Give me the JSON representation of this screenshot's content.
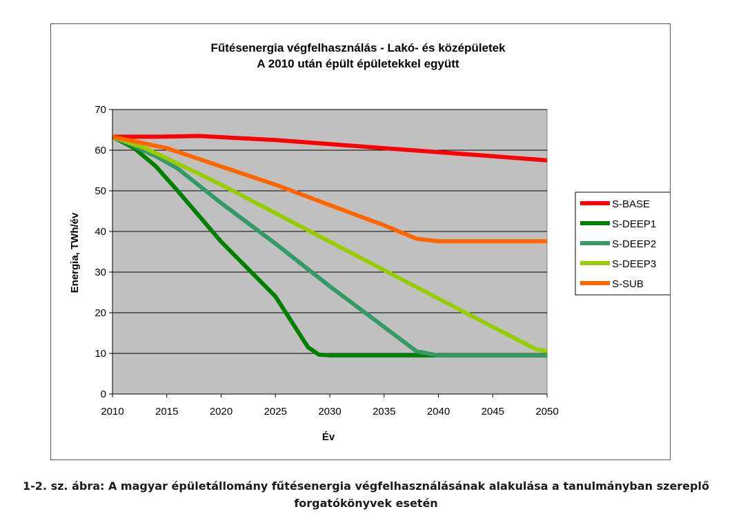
{
  "chart_data": {
    "type": "line",
    "title": "Fűtésenergia végfelhasználás - Lakó- és középületek",
    "subtitle": "A 2010 után épült épületekkel együtt",
    "xlabel": "Év",
    "ylabel": "Energia, TWh/év",
    "xlim": [
      2010,
      2050
    ],
    "ylim": [
      0,
      70
    ],
    "x_ticks": [
      2010,
      2015,
      2020,
      2025,
      2030,
      2035,
      2040,
      2045,
      2050
    ],
    "y_ticks": [
      0,
      10,
      20,
      30,
      40,
      50,
      60,
      70
    ],
    "grid": true,
    "legend_position": "right",
    "plot_background": "#c0c0c0",
    "series": [
      {
        "name": "S-BASE",
        "color": "#ff0000",
        "points": [
          [
            2010,
            63.3
          ],
          [
            2014,
            63.3
          ],
          [
            2018,
            63.5
          ],
          [
            2020,
            63.2
          ],
          [
            2025,
            62.5
          ],
          [
            2030,
            61.5
          ],
          [
            2035,
            60.5
          ],
          [
            2040,
            59.5
          ],
          [
            2045,
            58.5
          ],
          [
            2050,
            57.5
          ]
        ]
      },
      {
        "name": "S-DEEP1",
        "color": "#008000",
        "points": [
          [
            2010,
            63.3
          ],
          [
            2012,
            60.5
          ],
          [
            2014,
            56.0
          ],
          [
            2016,
            50.0
          ],
          [
            2020,
            37.5
          ],
          [
            2025,
            24.0
          ],
          [
            2028,
            11.5
          ],
          [
            2029,
            9.7
          ],
          [
            2030,
            9.5
          ],
          [
            2040,
            9.5
          ],
          [
            2050,
            9.5
          ]
        ]
      },
      {
        "name": "S-DEEP2",
        "color": "#339966",
        "points": [
          [
            2010,
            63.3
          ],
          [
            2012,
            61.0
          ],
          [
            2014,
            58.5
          ],
          [
            2016,
            55.5
          ],
          [
            2020,
            47.0
          ],
          [
            2025,
            37.0
          ],
          [
            2030,
            26.5
          ],
          [
            2035,
            16.5
          ],
          [
            2038,
            10.5
          ],
          [
            2040,
            9.5
          ],
          [
            2050,
            9.5
          ]
        ]
      },
      {
        "name": "S-DEEP3",
        "color": "#99cc00",
        "points": [
          [
            2010,
            63.3
          ],
          [
            2013,
            60.5
          ],
          [
            2015,
            58.0
          ],
          [
            2020,
            51.5
          ],
          [
            2025,
            44.5
          ],
          [
            2030,
            37.5
          ],
          [
            2035,
            30.5
          ],
          [
            2040,
            23.5
          ],
          [
            2045,
            16.5
          ],
          [
            2049,
            11.0
          ],
          [
            2050,
            10.5
          ]
        ]
      },
      {
        "name": "S-SUB",
        "color": "#ff6600",
        "points": [
          [
            2010,
            63.3
          ],
          [
            2015,
            60.5
          ],
          [
            2020,
            56.0
          ],
          [
            2025,
            51.5
          ],
          [
            2030,
            46.5
          ],
          [
            2035,
            41.5
          ],
          [
            2038,
            38.2
          ],
          [
            2040,
            37.6
          ],
          [
            2050,
            37.6
          ]
        ]
      }
    ]
  },
  "caption": {
    "line1": "1-2. sz. ábra: A magyar épületállomány fűtésenergia végfelhasználásának alakulása a tanulmányban szereplő",
    "line2": "forgatókönyvek esetén"
  }
}
